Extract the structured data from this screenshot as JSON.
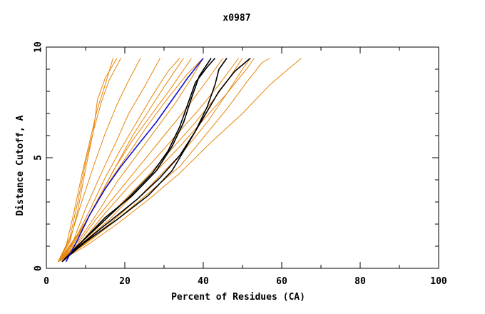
{
  "chart_data": {
    "type": "line",
    "title": "x0987",
    "xlabel": "Percent of Residues (CA)",
    "ylabel": "Distance Cutoff, A",
    "xlim": [
      0,
      100
    ],
    "ylim": [
      0,
      10
    ],
    "x_ticks": [
      0,
      20,
      40,
      60,
      80,
      100
    ],
    "x_tick_labels": [
      "0",
      "20",
      "40",
      "60",
      "80",
      "100"
    ],
    "y_ticks": [
      0,
      5,
      10
    ],
    "y_tick_labels": [
      "0",
      "5",
      "10"
    ],
    "grid": false,
    "legend": "none",
    "colors": {
      "orange": "#e8860a",
      "black": "#000000",
      "blue": "#1010d0"
    },
    "series": [
      {
        "color": "orange",
        "points": [
          [
            3,
            0.3
          ],
          [
            6,
            1.2
          ],
          [
            8,
            2.6
          ],
          [
            10,
            4.5
          ],
          [
            12,
            6.2
          ],
          [
            13,
            7.6
          ],
          [
            15,
            8.6
          ],
          [
            18,
            9.5
          ]
        ]
      },
      {
        "color": "orange",
        "points": [
          [
            3,
            0.3
          ],
          [
            5,
            1.0
          ],
          [
            7,
            2.5
          ],
          [
            9,
            4.2
          ],
          [
            11,
            5.7
          ],
          [
            13,
            7.2
          ],
          [
            15,
            8.3
          ],
          [
            17,
            9.5
          ]
        ]
      },
      {
        "color": "orange",
        "points": [
          [
            3,
            0.3
          ],
          [
            6,
            1.4
          ],
          [
            8,
            3.0
          ],
          [
            10,
            4.8
          ],
          [
            12,
            6.2
          ],
          [
            14,
            7.5
          ],
          [
            16,
            8.5
          ],
          [
            19,
            9.5
          ]
        ]
      },
      {
        "color": "orange",
        "points": [
          [
            3,
            0.3
          ],
          [
            6,
            1.3
          ],
          [
            9,
            3.0
          ],
          [
            12,
            4.6
          ],
          [
            15,
            6.1
          ],
          [
            18,
            7.4
          ],
          [
            21,
            8.5
          ],
          [
            24,
            9.5
          ]
        ]
      },
      {
        "color": "orange",
        "points": [
          [
            3,
            0.3
          ],
          [
            7,
            1.3
          ],
          [
            10,
            2.7
          ],
          [
            14,
            4.3
          ],
          [
            18,
            5.8
          ],
          [
            21,
            7.0
          ],
          [
            25,
            8.2
          ],
          [
            29,
            9.5
          ]
        ]
      },
      {
        "color": "orange",
        "points": [
          [
            3,
            0.3
          ],
          [
            7,
            1.2
          ],
          [
            11,
            2.6
          ],
          [
            15,
            4.1
          ],
          [
            19,
            5.4
          ],
          [
            23,
            6.6
          ],
          [
            27,
            7.8
          ],
          [
            31,
            8.9
          ],
          [
            34,
            9.5
          ]
        ]
      },
      {
        "color": "orange",
        "points": [
          [
            3,
            0.3
          ],
          [
            7,
            1.1
          ],
          [
            11,
            2.4
          ],
          [
            16,
            3.9
          ],
          [
            21,
            5.2
          ],
          [
            26,
            6.5
          ],
          [
            31,
            7.7
          ],
          [
            36,
            8.8
          ],
          [
            40,
            9.5
          ]
        ]
      },
      {
        "color": "orange",
        "points": [
          [
            3,
            0.3
          ],
          [
            8,
            1.2
          ],
          [
            13,
            2.5
          ],
          [
            18,
            3.9
          ],
          [
            23,
            5.1
          ],
          [
            28,
            6.3
          ],
          [
            33,
            7.5
          ],
          [
            37,
            8.6
          ],
          [
            40,
            9.5
          ]
        ]
      },
      {
        "color": "orange",
        "points": [
          [
            3,
            0.3
          ],
          [
            8,
            1.1
          ],
          [
            13,
            2.3
          ],
          [
            19,
            3.6
          ],
          [
            25,
            4.9
          ],
          [
            30,
            6.0
          ],
          [
            36,
            7.3
          ],
          [
            41,
            8.5
          ],
          [
            45,
            9.5
          ]
        ]
      },
      {
        "color": "orange",
        "points": [
          [
            3,
            0.3
          ],
          [
            9,
            1.2
          ],
          [
            15,
            2.5
          ],
          [
            21,
            3.7
          ],
          [
            27,
            4.8
          ],
          [
            33,
            6.0
          ],
          [
            39,
            7.2
          ],
          [
            44,
            8.3
          ],
          [
            49,
            9.5
          ]
        ]
      },
      {
        "color": "orange",
        "points": [
          [
            3,
            0.3
          ],
          [
            9,
            1.1
          ],
          [
            16,
            2.2
          ],
          [
            22,
            3.3
          ],
          [
            28,
            4.4
          ],
          [
            34,
            5.5
          ],
          [
            40,
            6.7
          ],
          [
            46,
            7.9
          ],
          [
            51,
            9.0
          ],
          [
            53,
            9.5
          ]
        ]
      },
      {
        "color": "orange",
        "points": [
          [
            3,
            0.3
          ],
          [
            9,
            1.0
          ],
          [
            16,
            2.0
          ],
          [
            23,
            3.1
          ],
          [
            29,
            4.2
          ],
          [
            35,
            5.3
          ],
          [
            41,
            6.6
          ],
          [
            46,
            7.9
          ],
          [
            50,
            9.0
          ],
          [
            52,
            9.5
          ]
        ]
      },
      {
        "color": "orange",
        "points": [
          [
            3,
            0.3
          ],
          [
            10,
            1.1
          ],
          [
            18,
            2.2
          ],
          [
            26,
            3.4
          ],
          [
            34,
            4.6
          ],
          [
            40,
            5.9
          ],
          [
            46,
            7.2
          ],
          [
            51,
            8.4
          ],
          [
            55,
            9.3
          ],
          [
            57,
            9.5
          ]
        ]
      },
      {
        "color": "orange",
        "points": [
          [
            3,
            0.3
          ],
          [
            10,
            1.0
          ],
          [
            18,
            2.0
          ],
          [
            26,
            3.1
          ],
          [
            34,
            4.3
          ],
          [
            42,
            5.7
          ],
          [
            50,
            7.0
          ],
          [
            57,
            8.3
          ],
          [
            63,
            9.2
          ],
          [
            65,
            9.5
          ]
        ]
      },
      {
        "color": "orange",
        "points": [
          [
            3,
            0.3
          ],
          [
            8,
            1.0
          ],
          [
            14,
            2.0
          ],
          [
            20,
            3.1
          ],
          [
            26,
            4.2
          ],
          [
            32,
            5.4
          ],
          [
            38,
            6.6
          ],
          [
            43,
            7.7
          ],
          [
            47,
            8.7
          ],
          [
            50,
            9.5
          ]
        ]
      },
      {
        "color": "orange",
        "points": [
          [
            3,
            0.3
          ],
          [
            6,
            0.9
          ],
          [
            9,
            1.8
          ],
          [
            13,
            3.0
          ],
          [
            17,
            4.4
          ],
          [
            22,
            5.8
          ],
          [
            27,
            7.0
          ],
          [
            32,
            8.2
          ],
          [
            37,
            9.5
          ]
        ]
      },
      {
        "color": "orange",
        "points": [
          [
            3,
            0.3
          ],
          [
            6,
            1.0
          ],
          [
            10,
            2.1
          ],
          [
            14,
            3.4
          ],
          [
            18,
            4.7
          ],
          [
            22,
            6.0
          ],
          [
            26,
            7.1
          ],
          [
            30,
            8.2
          ],
          [
            35,
            9.5
          ]
        ]
      },
      {
        "color": "black",
        "points": [
          [
            4,
            0.3
          ],
          [
            9,
            1.2
          ],
          [
            15,
            2.2
          ],
          [
            21,
            3.2
          ],
          [
            27,
            4.3
          ],
          [
            31,
            5.3
          ],
          [
            34,
            6.4
          ],
          [
            36,
            7.4
          ],
          [
            38,
            8.4
          ],
          [
            41,
            9.1
          ],
          [
            43,
            9.5
          ]
        ]
      },
      {
        "color": "black",
        "points": [
          [
            4,
            0.3
          ],
          [
            9,
            1.2
          ],
          [
            15,
            2.3
          ],
          [
            22,
            3.3
          ],
          [
            28,
            4.4
          ],
          [
            32,
            5.5
          ],
          [
            35,
            6.6
          ],
          [
            37,
            7.7
          ],
          [
            39,
            8.7
          ],
          [
            42,
            9.5
          ]
        ]
      },
      {
        "color": "black",
        "points": [
          [
            4,
            0.3
          ],
          [
            9,
            1.1
          ],
          [
            16,
            2.1
          ],
          [
            23,
            3.1
          ],
          [
            29,
            4.1
          ],
          [
            34,
            5.1
          ],
          [
            38,
            6.2
          ],
          [
            41,
            7.3
          ],
          [
            43,
            8.3
          ],
          [
            44,
            9.0
          ],
          [
            46,
            9.5
          ]
        ]
      },
      {
        "color": "black",
        "points": [
          [
            4,
            0.3
          ],
          [
            10,
            1.2
          ],
          [
            18,
            2.2
          ],
          [
            26,
            3.3
          ],
          [
            32,
            4.4
          ],
          [
            36,
            5.6
          ],
          [
            40,
            6.8
          ],
          [
            44,
            8.0
          ],
          [
            48,
            8.9
          ],
          [
            52,
            9.5
          ]
        ]
      },
      {
        "color": "blue",
        "points": [
          [
            5,
            0.3
          ],
          [
            8,
            1.3
          ],
          [
            11,
            2.4
          ],
          [
            15,
            3.6
          ],
          [
            19,
            4.6
          ],
          [
            23,
            5.5
          ],
          [
            28,
            6.6
          ],
          [
            32,
            7.6
          ],
          [
            36,
            8.6
          ],
          [
            40,
            9.5
          ]
        ]
      }
    ]
  }
}
